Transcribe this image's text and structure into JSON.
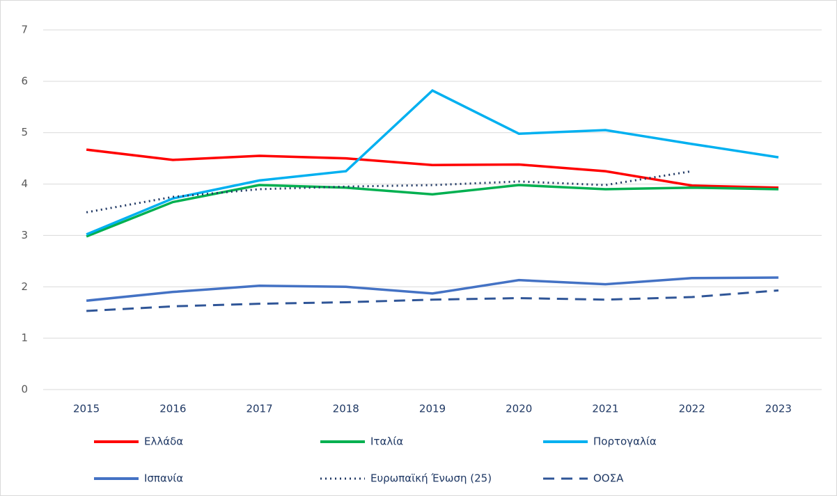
{
  "chart_data": {
    "type": "line",
    "categories": [
      "2015",
      "2016",
      "2017",
      "2018",
      "2019",
      "2020",
      "2021",
      "2022",
      "2023"
    ],
    "series": [
      {
        "name": "Ελλάδα",
        "color": "#ff0000",
        "style": "solid",
        "values": [
          4.67,
          4.47,
          4.55,
          4.5,
          4.37,
          4.38,
          4.25,
          3.97,
          3.93
        ]
      },
      {
        "name": "Ιταλία",
        "color": "#00b050",
        "style": "solid",
        "values": [
          2.98,
          3.65,
          3.98,
          3.93,
          3.8,
          3.98,
          3.9,
          3.93,
          3.9
        ]
      },
      {
        "name": "Πορτογαλία",
        "color": "#00b0f0",
        "style": "solid",
        "values": [
          3.02,
          3.72,
          4.07,
          4.25,
          5.82,
          4.98,
          5.05,
          4.78,
          4.52
        ]
      },
      {
        "name": "Ισπανία",
        "color": "#4472c4",
        "style": "solid",
        "values": [
          1.73,
          1.9,
          2.02,
          2.0,
          1.87,
          2.13,
          2.05,
          2.17,
          2.18
        ]
      },
      {
        "name": "Ευρωπαϊκή Ένωση (25)",
        "color": "#203864",
        "style": "dotted",
        "values": [
          3.45,
          3.75,
          3.9,
          3.95,
          3.98,
          4.05,
          3.98,
          4.25,
          null
        ]
      },
      {
        "name": "ΟΟΣΑ",
        "color": "#2f5597",
        "style": "dashed",
        "values": [
          1.53,
          1.62,
          1.67,
          1.7,
          1.75,
          1.78,
          1.75,
          1.8,
          1.93
        ]
      }
    ],
    "ylim": [
      0,
      7
    ],
    "yticks": [
      0,
      1,
      2,
      3,
      4,
      5,
      6,
      7
    ],
    "grid": true,
    "legend": "bottom"
  }
}
